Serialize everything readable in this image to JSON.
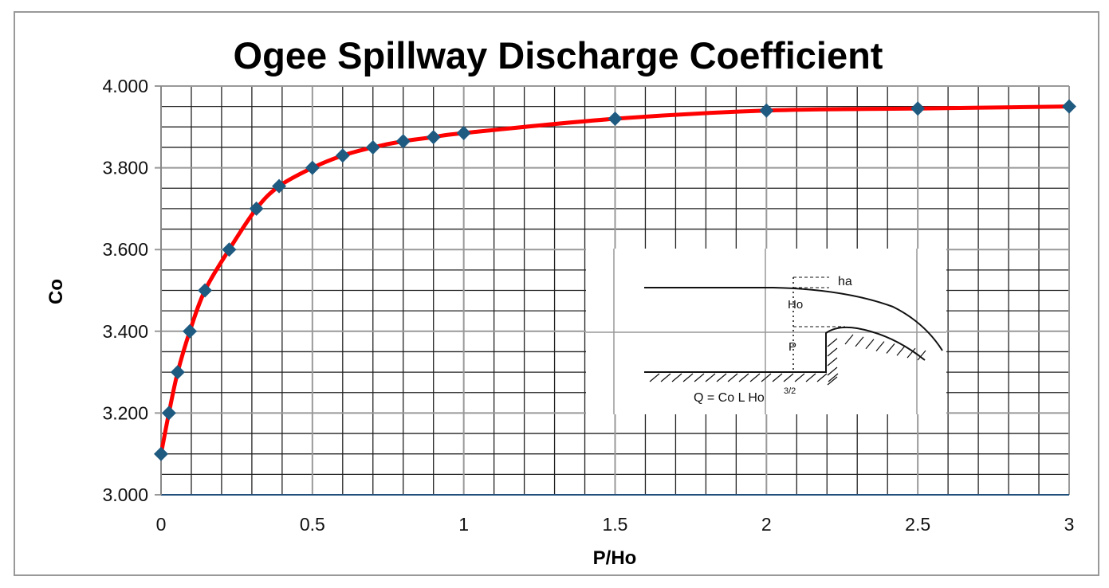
{
  "chart_data": {
    "type": "line",
    "title": "Ogee Spillway Discharge Coefficient",
    "xlabel": "P/Ho",
    "ylabel": "Co",
    "xlim": [
      0,
      3
    ],
    "ylim": [
      3.0,
      4.0
    ],
    "x_ticks": [
      "0",
      "0.5",
      "1",
      "1.5",
      "2",
      "2.5",
      "3"
    ],
    "y_ticks": [
      "3.000",
      "3.200",
      "3.400",
      "3.600",
      "3.800",
      "4.000"
    ],
    "grid": true,
    "line_color": "#ff0000",
    "marker_color": "#1f5a80",
    "marker": "diamond",
    "x": [
      0,
      0.026,
      0.055,
      0.095,
      0.145,
      0.225,
      0.315,
      0.39,
      0.5,
      0.6,
      0.7,
      0.8,
      0.9,
      1.0,
      1.5,
      2.0,
      2.5,
      3.0
    ],
    "y": [
      3.1,
      3.2,
      3.3,
      3.4,
      3.5,
      3.6,
      3.7,
      3.755,
      3.8,
      3.83,
      3.85,
      3.865,
      3.875,
      3.885,
      3.92,
      3.94,
      3.945,
      3.95
    ],
    "inset": {
      "label_ha": "ha",
      "label_Ho": "Ho",
      "label_P": "P",
      "formula": "Q = Co L Ho",
      "formula_exponent": "3/2"
    }
  }
}
